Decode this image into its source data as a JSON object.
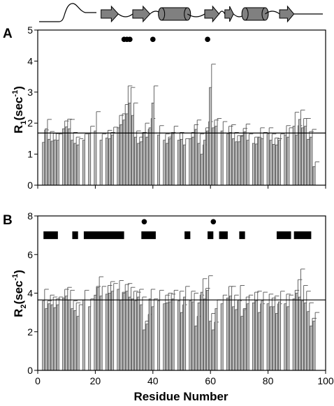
{
  "x_axis_label": "Residue Number",
  "colors": {
    "bar_fill": "#bdbdbd",
    "bar_stroke": "#444444",
    "sse_fill": "#808080"
  },
  "secondary_structure": {
    "elements": [
      {
        "type": "strand",
        "start": 22,
        "end": 28
      },
      {
        "type": "strand",
        "start": 33,
        "end": 39
      },
      {
        "type": "helix",
        "start": 43,
        "end": 52
      },
      {
        "type": "strand",
        "start": 58,
        "end": 63
      },
      {
        "type": "strand",
        "start": 65,
        "end": 68
      },
      {
        "type": "helix",
        "start": 72,
        "end": 79
      },
      {
        "type": "strand",
        "start": 84,
        "end": 89
      }
    ]
  },
  "chart_data": [
    {
      "panel": "A",
      "type": "bar",
      "ylabel": "R1(sec-1)",
      "ylabel_main": "R",
      "ylabel_sub": "1",
      "ylabel_mid": "(sec",
      "ylabel_sup": "-1",
      "ylabel_end": ")",
      "xlim": [
        0,
        100
      ],
      "ylim": [
        0,
        5
      ],
      "xticks": [
        "0",
        "20",
        "40",
        "60",
        "80",
        "100"
      ],
      "yticks": [
        "0",
        "1",
        "2",
        "3",
        "4",
        "5"
      ],
      "reference_line": 1.68,
      "markers": {
        "residues": [
          30,
          31,
          32,
          40,
          59
        ],
        "y": 4.7
      },
      "residues": [
        2,
        3,
        4,
        5,
        6,
        7,
        9,
        10,
        11,
        12,
        13,
        14,
        16,
        18,
        20,
        22,
        24,
        25,
        26,
        28,
        29,
        30,
        31,
        32,
        33,
        34,
        35,
        36,
        37,
        38,
        39,
        40,
        42,
        44,
        45,
        46,
        47,
        49,
        50,
        51,
        53,
        54,
        55,
        56,
        57,
        58,
        59,
        60,
        61,
        62,
        64,
        66,
        67,
        68,
        69,
        70,
        71,
        72,
        73,
        75,
        76,
        77,
        78,
        80,
        81,
        82,
        83,
        84,
        86,
        87,
        89,
        90,
        91,
        92,
        93,
        94,
        95,
        96
      ],
      "values": [
        1.38,
        1.82,
        1.48,
        1.42,
        1.46,
        1.45,
        1.82,
        1.88,
        1.82,
        1.45,
        1.35,
        1.3,
        1.45,
        1.65,
        1.75,
        1.45,
        1.52,
        1.5,
        1.62,
        1.85,
        1.95,
        2.1,
        2.3,
        2.65,
        2.25,
        1.55,
        1.35,
        1.4,
        1.7,
        1.55,
        1.85,
        2.65,
        1.62,
        1.45,
        1.35,
        1.5,
        1.65,
        1.45,
        1.48,
        1.3,
        1.5,
        1.55,
        1.8,
        1.35,
        1.0,
        1.45,
        1.75,
        3.15,
        1.85,
        1.9,
        1.75,
        1.65,
        1.7,
        1.5,
        1.4,
        1.4,
        1.58,
        1.72,
        1.45,
        1.35,
        1.33,
        1.55,
        1.5,
        1.65,
        1.45,
        1.32,
        1.3,
        1.45,
        1.62,
        1.55,
        1.9,
        1.62,
        2.12,
        1.85,
        1.9,
        1.48,
        1.55,
        0.6
      ],
      "errors": [
        0.4,
        0.3,
        0.25,
        0.25,
        0.2,
        0.2,
        0.25,
        0.25,
        0.3,
        0.25,
        0.2,
        0.2,
        0.2,
        0.25,
        0.62,
        0.2,
        0.25,
        0.2,
        0.25,
        0.4,
        0.35,
        0.5,
        0.9,
        0.5,
        0.4,
        0.2,
        0.2,
        0.3,
        0.3,
        0.25,
        0.3,
        0.55,
        0.3,
        0.2,
        0.2,
        0.2,
        0.25,
        0.25,
        0.2,
        0.2,
        0.2,
        0.4,
        0.3,
        0.3,
        0.3,
        0.4,
        0.3,
        0.75,
        0.25,
        0.25,
        0.3,
        0.25,
        0.25,
        0.2,
        0.2,
        0.2,
        0.25,
        0.25,
        0.2,
        0.2,
        0.2,
        0.3,
        0.2,
        0.2,
        0.2,
        0.2,
        0.2,
        0.2,
        0.3,
        0.3,
        0.45,
        0.3,
        0.3,
        0.3,
        0.25,
        0.25,
        0.25,
        0.15
      ]
    },
    {
      "panel": "B",
      "type": "bar",
      "ylabel": "R2(sec-1)",
      "ylabel_main": "R",
      "ylabel_sub": "2",
      "ylabel_mid": "(sec",
      "ylabel_sup": "-1",
      "ylabel_end": ")",
      "xlim": [
        0,
        100
      ],
      "ylim": [
        0,
        8
      ],
      "xticks": [
        "0",
        "20",
        "40",
        "60",
        "80",
        "100"
      ],
      "yticks": [
        "0",
        "2",
        "4",
        "6",
        "8"
      ],
      "reference_line": 3.65,
      "markers": {
        "residues": [
          37,
          61
        ],
        "y": 7.7
      },
      "blocks": {
        "y": 7.0,
        "ranges": [
          [
            2,
            7
          ],
          [
            12,
            14
          ],
          [
            16,
            30
          ],
          [
            36,
            41
          ],
          [
            51,
            53
          ],
          [
            59,
            61
          ],
          [
            63,
            66
          ],
          [
            70,
            72
          ],
          [
            83,
            88
          ],
          [
            89,
            95
          ]
        ]
      },
      "residues": [
        2,
        3,
        4,
        5,
        6,
        7,
        9,
        10,
        11,
        12,
        13,
        14,
        16,
        18,
        20,
        21,
        22,
        24,
        25,
        26,
        28,
        29,
        30,
        31,
        32,
        33,
        34,
        35,
        36,
        37,
        38,
        39,
        40,
        42,
        44,
        45,
        46,
        47,
        49,
        50,
        51,
        53,
        54,
        55,
        56,
        57,
        58,
        59,
        60,
        61,
        62,
        64,
        66,
        67,
        68,
        69,
        70,
        71,
        72,
        73,
        75,
        76,
        77,
        78,
        80,
        81,
        82,
        83,
        84,
        86,
        87,
        89,
        90,
        91,
        92,
        93,
        94,
        95,
        96
      ],
      "values": [
        3.6,
        3.2,
        3.45,
        3.4,
        3.25,
        3.4,
        3.75,
        3.85,
        3.65,
        3.2,
        3.1,
        2.8,
        3.65,
        3.3,
        3.9,
        4.3,
        3.85,
        3.95,
        4.0,
        4.1,
        4.2,
        3.65,
        4.0,
        4.1,
        3.8,
        3.7,
        3.6,
        3.8,
        3.4,
        2.1,
        2.4,
        3.7,
        3.3,
        3.6,
        3.45,
        3.5,
        3.55,
        3.7,
        3.6,
        3.0,
        3.8,
        3.6,
        3.55,
        2.3,
        3.5,
        4.05,
        3.7,
        4.15,
        2.55,
        2.1,
        3.2,
        3.45,
        3.75,
        3.85,
        3.3,
        3.15,
        3.65,
        2.8,
        3.15,
        3.45,
        3.5,
        3.6,
        3.0,
        3.6,
        3.45,
        3.3,
        3.3,
        2.95,
        3.55,
        3.45,
        3.3,
        3.7,
        4.0,
        3.8,
        3.6,
        3.5,
        3.05,
        2.3,
        2.55
      ],
      "errors": [
        0.6,
        0.4,
        0.45,
        0.4,
        0.45,
        0.4,
        0.45,
        0.45,
        0.5,
        0.4,
        0.4,
        0.6,
        0.5,
        0.4,
        0.45,
        0.55,
        0.5,
        0.45,
        0.6,
        0.4,
        0.45,
        0.4,
        0.45,
        0.4,
        0.5,
        0.4,
        0.45,
        0.4,
        0.4,
        0.45,
        0.5,
        0.5,
        0.4,
        0.55,
        0.45,
        0.5,
        0.4,
        0.45,
        0.5,
        0.4,
        0.55,
        0.5,
        0.45,
        0.5,
        0.4,
        0.7,
        0.55,
        0.75,
        0.4,
        0.4,
        0.45,
        0.45,
        0.6,
        0.5,
        0.6,
        0.45,
        0.75,
        0.4,
        0.65,
        0.45,
        0.55,
        0.5,
        0.45,
        0.45,
        0.5,
        0.45,
        0.55,
        0.5,
        0.55,
        0.5,
        0.6,
        0.45,
        0.7,
        1.45,
        0.8,
        0.6,
        0.45,
        0.4,
        0.45
      ]
    }
  ]
}
